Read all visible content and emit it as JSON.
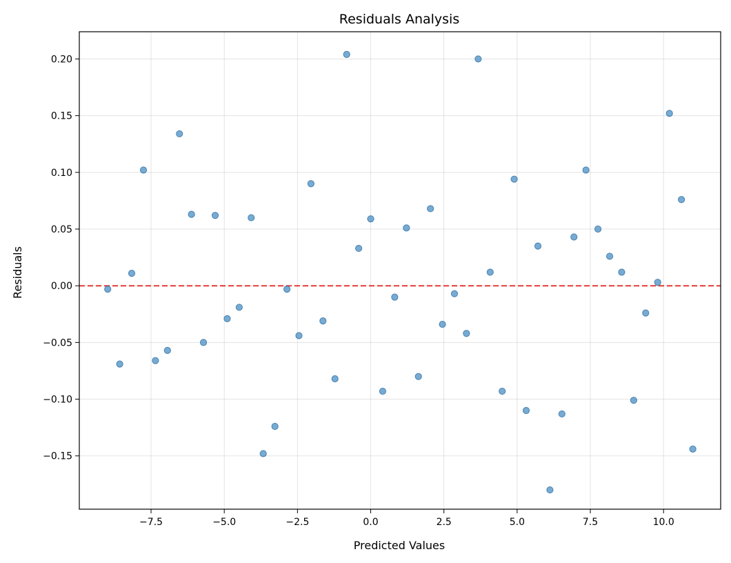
{
  "chart_data": {
    "type": "scatter",
    "title": "Residuals Analysis",
    "xlabel": "Predicted Values",
    "ylabel": "Residuals",
    "xlim": [
      -9.95,
      11.95
    ],
    "ylim": [
      -0.197,
      0.224
    ],
    "x_ticks": [
      -7.5,
      -5.0,
      -2.5,
      0.0,
      2.5,
      5.0,
      7.5,
      10.0
    ],
    "x_tick_labels": [
      "−7.5",
      "−5.0",
      "−2.5",
      "0.0",
      "2.5",
      "5.0",
      "7.5",
      "10.0"
    ],
    "y_ticks": [
      -0.15,
      -0.1,
      -0.05,
      0.0,
      0.05,
      0.1,
      0.15,
      0.2
    ],
    "y_tick_labels": [
      "−0.15",
      "−0.10",
      "−0.05",
      "0.00",
      "0.05",
      "0.10",
      "0.15",
      "0.20"
    ],
    "grid": true,
    "reference_line": {
      "y": 0,
      "style": "dashed",
      "color": "#e53935"
    },
    "marker_color": "#4a8fc4",
    "series": [
      {
        "x": [
          -8.98,
          -8.57,
          -8.16,
          -7.76,
          -7.35,
          -6.94,
          -6.53,
          -6.12,
          -5.71,
          -5.31,
          -4.9,
          -4.49,
          -4.08,
          -3.67,
          -3.27,
          -2.86,
          -2.45,
          -2.04,
          -1.63,
          -1.22,
          -0.82,
          -0.41,
          0.0,
          0.41,
          0.82,
          1.22,
          1.63,
          2.04,
          2.45,
          2.86,
          3.27,
          3.67,
          4.08,
          4.49,
          4.9,
          5.31,
          5.71,
          6.12,
          6.53,
          6.94,
          7.35,
          7.76,
          8.16,
          8.57,
          8.98,
          9.39,
          9.8,
          10.2,
          10.61,
          11.0
        ],
        "y": [
          -0.003,
          -0.069,
          0.011,
          0.102,
          -0.066,
          -0.057,
          0.134,
          0.063,
          -0.05,
          0.062,
          -0.029,
          -0.019,
          0.06,
          -0.148,
          -0.124,
          -0.003,
          -0.044,
          0.09,
          -0.031,
          -0.082,
          0.204,
          0.033,
          0.059,
          -0.093,
          -0.01,
          0.051,
          -0.08,
          0.068,
          -0.034,
          -0.007,
          -0.042,
          0.2,
          0.012,
          -0.093,
          0.094,
          -0.11,
          0.035,
          -0.18,
          -0.113,
          0.043,
          0.102,
          0.05,
          0.026,
          0.012,
          -0.101,
          -0.024,
          0.003,
          0.152,
          0.076,
          -0.144
        ]
      }
    ]
  }
}
